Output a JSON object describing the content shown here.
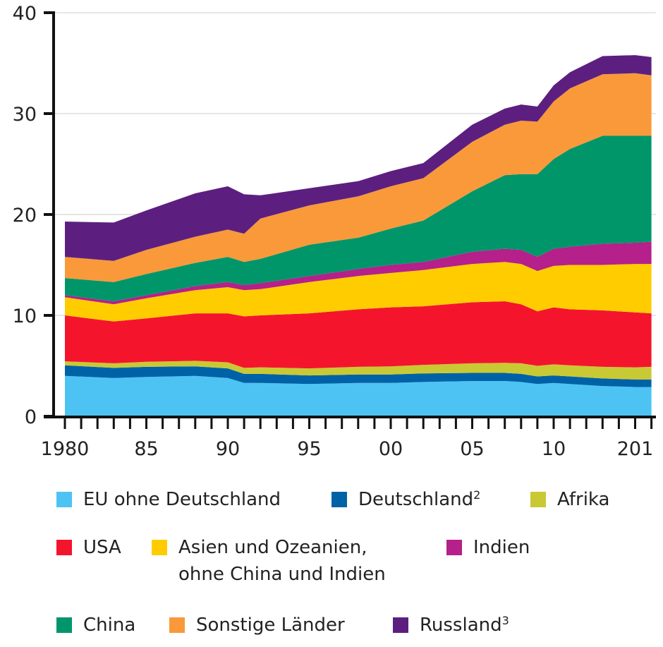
{
  "chart_data": {
    "type": "area",
    "stacked": true,
    "title": "",
    "xlabel": "",
    "ylabel": "",
    "ylim": [
      0,
      40
    ],
    "xlim": [
      1980,
      2016
    ],
    "grid": true,
    "legend_position": "bottom",
    "y_ticks": [
      "0",
      "10",
      "20",
      "30",
      "40"
    ],
    "x_ticks": [
      {
        "value": 1980,
        "label": "1980"
      },
      {
        "value": 1985,
        "label": "85"
      },
      {
        "value": 1990,
        "label": "90"
      },
      {
        "value": 1995,
        "label": "95"
      },
      {
        "value": 2000,
        "label": "00"
      },
      {
        "value": 2005,
        "label": "05"
      },
      {
        "value": 2010,
        "label": "10"
      },
      {
        "value": 2015,
        "label": "201"
      }
    ],
    "x": [
      1980,
      1983,
      1985,
      1988,
      1990,
      1991,
      1992,
      1995,
      1998,
      2000,
      2002,
      2005,
      2007,
      2008,
      2009,
      2010,
      2011,
      2013,
      2015,
      2016
    ],
    "series": [
      {
        "name": "EU ohne Deutschland",
        "sup": "",
        "color": "#4dc3f3",
        "values": [
          4.0,
          3.8,
          3.9,
          4.0,
          3.8,
          3.3,
          3.3,
          3.2,
          3.3,
          3.3,
          3.4,
          3.5,
          3.5,
          3.4,
          3.2,
          3.3,
          3.2,
          3.0,
          2.9,
          2.9
        ]
      },
      {
        "name": "Deutschland",
        "sup": "2",
        "color": "#0062a6",
        "values": [
          1.05,
          1.0,
          1.0,
          0.95,
          0.95,
          0.9,
          0.9,
          0.85,
          0.85,
          0.85,
          0.85,
          0.8,
          0.8,
          0.8,
          0.75,
          0.75,
          0.75,
          0.75,
          0.75,
          0.75
        ]
      },
      {
        "name": "Afrika",
        "sup": "",
        "color": "#c9c934",
        "values": [
          0.4,
          0.45,
          0.5,
          0.55,
          0.6,
          0.6,
          0.65,
          0.7,
          0.75,
          0.8,
          0.85,
          0.95,
          1.0,
          1.05,
          1.05,
          1.1,
          1.1,
          1.15,
          1.2,
          1.25
        ]
      },
      {
        "name": "USA",
        "sup": "",
        "color": "#f4152d",
        "values": [
          4.55,
          4.15,
          4.3,
          4.7,
          4.85,
          5.1,
          5.15,
          5.45,
          5.7,
          5.85,
          5.8,
          6.05,
          6.1,
          5.85,
          5.4,
          5.65,
          5.55,
          5.6,
          5.45,
          5.3
        ]
      },
      {
        "name": "Asien und Ozeanien,",
        "name_line2": "ohne China und Indien",
        "sup": "",
        "color": "#ffcc00",
        "values": [
          1.8,
          1.7,
          2.0,
          2.3,
          2.6,
          2.6,
          2.6,
          3.1,
          3.3,
          3.4,
          3.6,
          3.8,
          3.9,
          4.0,
          4.0,
          4.1,
          4.4,
          4.5,
          4.8,
          4.9
        ]
      },
      {
        "name": "Indien",
        "sup": "",
        "color": "#b5208a",
        "values": [
          0.2,
          0.3,
          0.3,
          0.4,
          0.5,
          0.5,
          0.6,
          0.6,
          0.7,
          0.8,
          0.8,
          1.2,
          1.3,
          1.4,
          1.4,
          1.7,
          1.8,
          2.1,
          2.1,
          2.2
        ]
      },
      {
        "name": "China",
        "sup": "",
        "color": "#00966a",
        "values": [
          1.7,
          1.9,
          2.1,
          2.3,
          2.5,
          2.3,
          2.4,
          3.1,
          3.1,
          3.6,
          4.1,
          6.0,
          7.3,
          7.5,
          8.2,
          8.9,
          9.7,
          10.7,
          10.6,
          10.5
        ]
      },
      {
        "name": "Sonstige Länder",
        "sup": "",
        "color": "#f9993a",
        "values": [
          2.1,
          2.1,
          2.4,
          2.6,
          2.7,
          2.8,
          4.0,
          3.9,
          4.1,
          4.2,
          4.2,
          4.9,
          5.0,
          5.3,
          5.2,
          5.7,
          6.0,
          6.1,
          6.2,
          6.0
        ]
      },
      {
        "name": "Russland",
        "sup": "3",
        "color": "#5c1f80",
        "values": [
          3.5,
          3.8,
          3.9,
          4.3,
          4.3,
          3.9,
          2.3,
          1.7,
          1.5,
          1.5,
          1.5,
          1.7,
          1.6,
          1.6,
          1.5,
          1.6,
          1.6,
          1.8,
          1.8,
          1.8
        ]
      }
    ]
  }
}
